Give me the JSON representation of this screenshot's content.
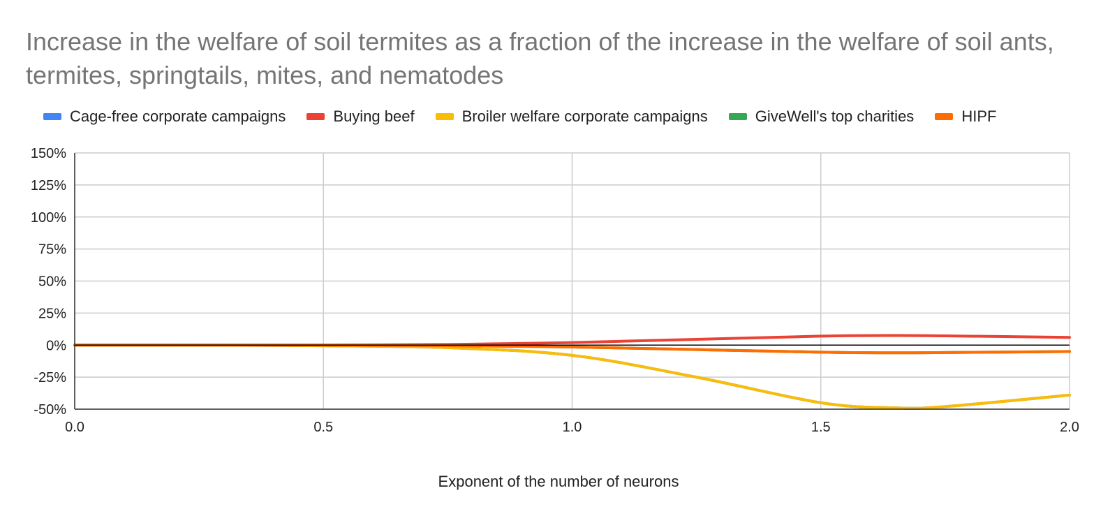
{
  "chart_data": {
    "type": "line",
    "title": "Increase in the welfare of soil termites as a fraction of the increase in the welfare of soil ants, termites, springtails, mites, and nematodes",
    "xlabel": "Exponent of the number of neurons",
    "ylabel": "",
    "xlim": [
      0,
      2
    ],
    "ylim": [
      -50,
      150
    ],
    "x_ticks": [
      "0.0",
      "0.5",
      "1.0",
      "1.5",
      "2.0"
    ],
    "y_ticks": [
      "150%",
      "125%",
      "100%",
      "75%",
      "50%",
      "25%",
      "0%",
      "-25%",
      "-50%"
    ],
    "legend_position": "top",
    "grid": true,
    "x": [
      0,
      0.25,
      0.5,
      0.75,
      1.0,
      1.25,
      1.5,
      1.65,
      1.75,
      2.0
    ],
    "series": [
      {
        "name": "Cage-free corporate campaigns",
        "color": "#4285F4",
        "values": [
          0,
          -0.1,
          -0.5,
          -2,
          -8,
          -25,
          -45,
          -49,
          -48,
          -39
        ]
      },
      {
        "name": "Buying beef",
        "color": "#EA4335",
        "values": [
          0,
          0.05,
          0.1,
          0.5,
          2,
          4.5,
          7,
          7.5,
          7.2,
          6
        ]
      },
      {
        "name": "Broiler welfare corporate campaigns",
        "color": "#FBBC04",
        "values": [
          0,
          -0.1,
          -0.5,
          -2,
          -8,
          -25,
          -45,
          -49,
          -48,
          -39
        ]
      },
      {
        "name": "GiveWell's top charities",
        "color": "#34A853",
        "values": [
          0,
          -0.02,
          -0.1,
          -0.4,
          -1.5,
          -3.5,
          -5.5,
          -6,
          -5.8,
          -5
        ]
      },
      {
        "name": "HIPF",
        "color": "#FF6D01",
        "values": [
          0,
          -0.02,
          -0.1,
          -0.4,
          -1.5,
          -3.5,
          -5.5,
          -6,
          -5.8,
          -5
        ]
      }
    ]
  }
}
